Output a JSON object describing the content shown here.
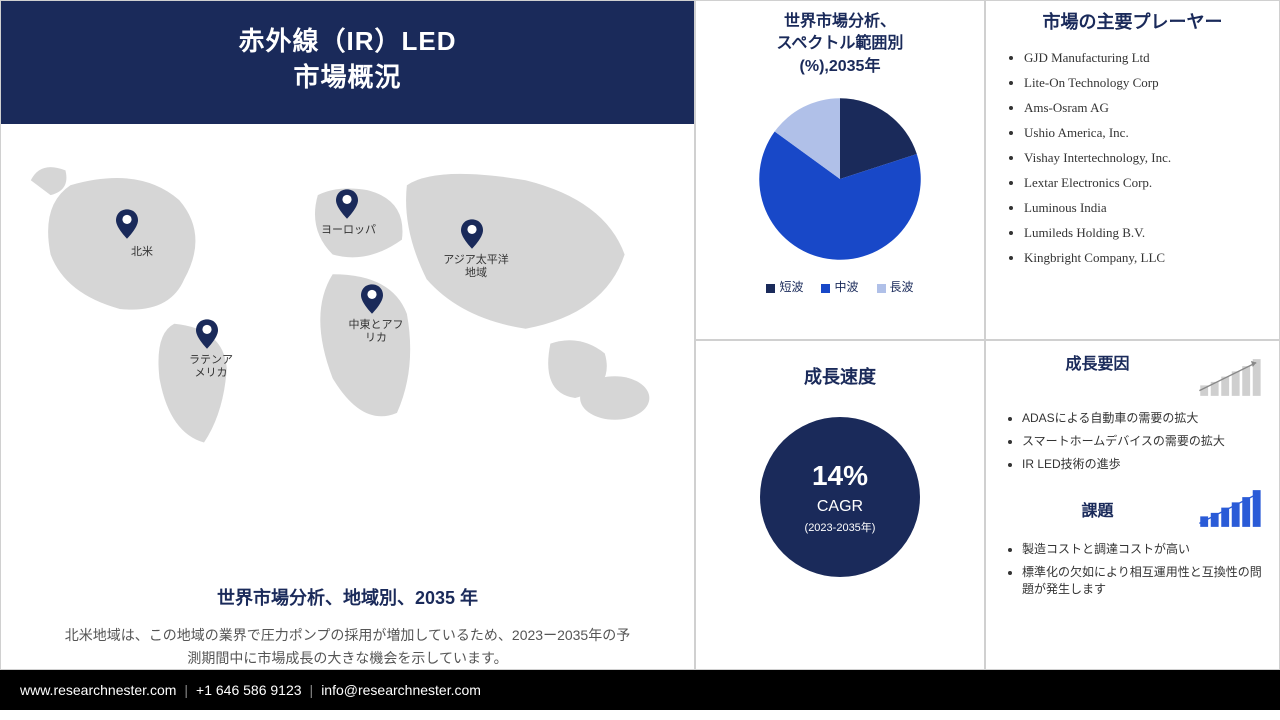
{
  "header": {
    "line1": "赤外線（IR）LED",
    "line2": "市場概況"
  },
  "map": {
    "title": "世界市場分析、地域別、2035 年",
    "description": "北米地域は、この地域の業界で圧力ポンプの採用が増加しているため、2023ー2035年の予測期間中に市場成長の大きな機会を示しています。",
    "regions": {
      "na": "北米",
      "latam": "ラテンアメリカ",
      "eu": "ヨーロッパ",
      "mea": "中東とアフリカ",
      "apac": "アジア太平洋地域"
    },
    "land_color": "#d6d6d6",
    "pin_color": "#1a2a5a"
  },
  "pie": {
    "title_l1": "世界市場分析、",
    "title_l2": "スペクトル範囲別",
    "title_l3": "(%),2035年",
    "slices": [
      {
        "label": "短波",
        "value": 20,
        "color": "#1a2a5a"
      },
      {
        "label": "中波",
        "value": 65,
        "color": "#1848c8"
      },
      {
        "label": "長波",
        "value": 15,
        "color": "#b0c0e8"
      }
    ]
  },
  "players": {
    "title": "市場の主要プレーヤー",
    "list": [
      "GJD Manufacturing Ltd",
      "Lite-On Technology Corp",
      "Ams-Osram AG",
      "Ushio America, Inc.",
      "Vishay Intertechnology, Inc.",
      "Lextar Electronics Corp.",
      "Luminous India",
      "Lumileds Holding B.V.",
      "Kingbright Company, LLC"
    ]
  },
  "growth": {
    "title": "成長速度",
    "pct": "14%",
    "cagr": "CAGR",
    "period": "(2023-2035年)"
  },
  "factors": {
    "growth_title": "成長要因",
    "growth_list": [
      "ADASによる自動車の需要の拡大",
      "スマートホームデバイスの需要の拡大",
      "IR LED技術の進歩"
    ],
    "challenges_title": "課題",
    "challenges_list": [
      "製造コストと調達コストが高い",
      "標準化の欠如により相互運用性と互換性の問題が発生します"
    ],
    "gray_bar_color": "#cfcfcf",
    "blue_bar_color": "#2a5bd7"
  },
  "footer": {
    "url": "www.researchnester.com",
    "phone": "+1 646 586 9123",
    "email": "info@researchnester.com"
  }
}
